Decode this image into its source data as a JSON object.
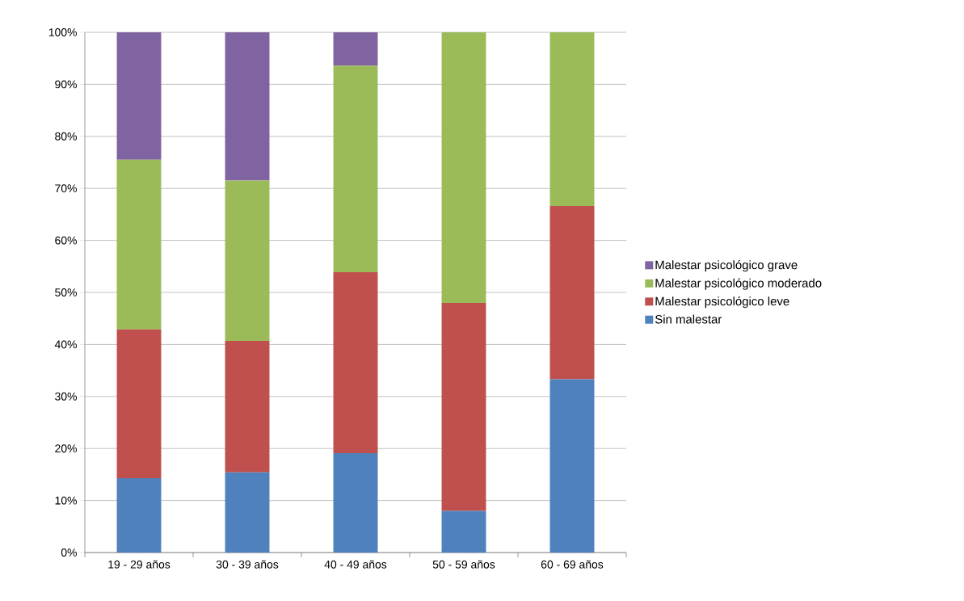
{
  "chart_data": {
    "type": "bar",
    "stacked": true,
    "categories": [
      "19 - 29 años",
      "30 - 39 años",
      "40 - 49 años",
      "50 - 59 años",
      "60 - 69 años"
    ],
    "series": [
      {
        "name": "Sin malestar",
        "color": "#4f81bd",
        "values": [
          14.3,
          15.4,
          19.1,
          8.0,
          33.3
        ]
      },
      {
        "name": "Malestar psicológico leve",
        "color": "#c0504d",
        "values": [
          28.6,
          25.3,
          34.8,
          40.0,
          33.3
        ]
      },
      {
        "name": "Malestar psicológico moderado",
        "color": "#9bbb59",
        "values": [
          32.6,
          30.8,
          39.7,
          52.0,
          33.4
        ]
      },
      {
        "name": "Malestar psicológico grave",
        "color": "#8064a2",
        "values": [
          24.5,
          28.5,
          6.4,
          0,
          0
        ]
      }
    ],
    "ylim": [
      0,
      100
    ],
    "yticks": [
      {
        "value": 0,
        "label": "0%"
      },
      {
        "value": 10,
        "label": "10%"
      },
      {
        "value": 20,
        "label": "20%"
      },
      {
        "value": 30,
        "label": "30%"
      },
      {
        "value": 40,
        "label": "40%"
      },
      {
        "value": 50,
        "label": "50%"
      },
      {
        "value": 60,
        "label": "60%"
      },
      {
        "value": 70,
        "label": "70%"
      },
      {
        "value": 80,
        "label": "80%"
      },
      {
        "value": 90,
        "label": "90%"
      },
      {
        "value": 100,
        "label": "100%"
      }
    ],
    "grid": "y",
    "legend": "right"
  }
}
